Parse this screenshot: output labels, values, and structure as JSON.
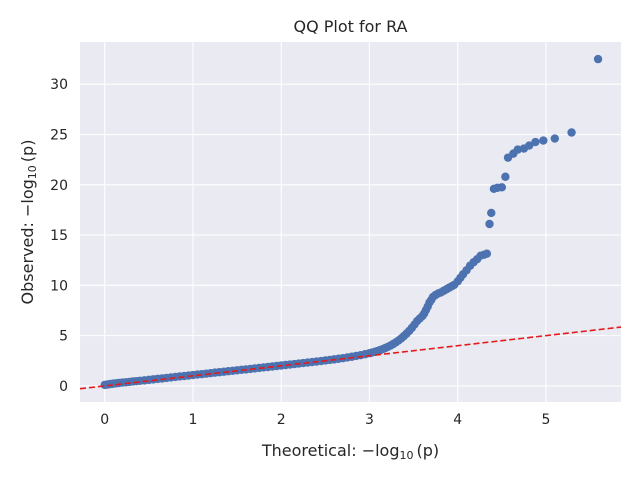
{
  "chart_data": {
    "type": "scatter",
    "title": "QQ Plot for RA",
    "xlabel_prefix": "Theoretical: ",
    "ylabel_prefix": "Observed: ",
    "axis_math": {
      "minus": "−",
      "log": "log",
      "base": "10",
      "arg": "(p)"
    },
    "xlim": [
      -0.28,
      5.85
    ],
    "ylim": [
      -1.6,
      34.2
    ],
    "xticks": [
      0,
      1,
      2,
      3,
      4,
      5
    ],
    "yticks": [
      0,
      5,
      10,
      15,
      20,
      25,
      30
    ],
    "grid": true,
    "background_color": "#eaeaf2",
    "point_color": "#4c72b0",
    "reference_line": {
      "style": "dashed",
      "color": "#e41a1c",
      "slope": 1.0,
      "intercept": 0.0
    },
    "points": [
      [
        0.0,
        0.1
      ],
      [
        0.02,
        0.12
      ],
      [
        0.04,
        0.15
      ],
      [
        0.06,
        0.18
      ],
      [
        0.08,
        0.2
      ],
      [
        0.1,
        0.23
      ],
      [
        0.13,
        0.26
      ],
      [
        0.16,
        0.29
      ],
      [
        0.2,
        0.33
      ],
      [
        0.24,
        0.36
      ],
      [
        0.28,
        0.4
      ],
      [
        0.32,
        0.44
      ],
      [
        0.36,
        0.47
      ],
      [
        0.4,
        0.51
      ],
      [
        0.45,
        0.55
      ],
      [
        0.5,
        0.6
      ],
      [
        0.55,
        0.65
      ],
      [
        0.6,
        0.7
      ],
      [
        0.65,
        0.74
      ],
      [
        0.7,
        0.79
      ],
      [
        0.75,
        0.84
      ],
      [
        0.8,
        0.89
      ],
      [
        0.85,
        0.94
      ],
      [
        0.9,
        0.98
      ],
      [
        0.95,
        1.03
      ],
      [
        1.0,
        1.08
      ],
      [
        1.05,
        1.13
      ],
      [
        1.1,
        1.17
      ],
      [
        1.15,
        1.22
      ],
      [
        1.2,
        1.27
      ],
      [
        1.25,
        1.32
      ],
      [
        1.3,
        1.36
      ],
      [
        1.35,
        1.41
      ],
      [
        1.4,
        1.46
      ],
      [
        1.45,
        1.5
      ],
      [
        1.5,
        1.55
      ],
      [
        1.55,
        1.6
      ],
      [
        1.6,
        1.64
      ],
      [
        1.65,
        1.69
      ],
      [
        1.7,
        1.74
      ],
      [
        1.75,
        1.79
      ],
      [
        1.8,
        1.84
      ],
      [
        1.85,
        1.88
      ],
      [
        1.9,
        1.93
      ],
      [
        1.95,
        1.98
      ],
      [
        2.0,
        2.03
      ],
      [
        2.05,
        2.08
      ],
      [
        2.1,
        2.12
      ],
      [
        2.15,
        2.17
      ],
      [
        2.2,
        2.22
      ],
      [
        2.25,
        2.27
      ],
      [
        2.3,
        2.32
      ],
      [
        2.35,
        2.37
      ],
      [
        2.4,
        2.42
      ],
      [
        2.45,
        2.47
      ],
      [
        2.5,
        2.53
      ],
      [
        2.55,
        2.58
      ],
      [
        2.6,
        2.64
      ],
      [
        2.65,
        2.7
      ],
      [
        2.7,
        2.76
      ],
      [
        2.75,
        2.83
      ],
      [
        2.8,
        2.9
      ],
      [
        2.85,
        2.98
      ],
      [
        2.9,
        3.06
      ],
      [
        2.95,
        3.15
      ],
      [
        3.0,
        3.25
      ],
      [
        3.03,
        3.32
      ],
      [
        3.06,
        3.39
      ],
      [
        3.09,
        3.47
      ],
      [
        3.12,
        3.56
      ],
      [
        3.15,
        3.66
      ],
      [
        3.18,
        3.77
      ],
      [
        3.21,
        3.89
      ],
      [
        3.24,
        4.02
      ],
      [
        3.27,
        4.17
      ],
      [
        3.3,
        4.34
      ],
      [
        3.33,
        4.52
      ],
      [
        3.36,
        4.72
      ],
      [
        3.39,
        4.95
      ],
      [
        3.42,
        5.2
      ],
      [
        3.45,
        5.47
      ],
      [
        3.48,
        5.77
      ],
      [
        3.51,
        6.1
      ],
      [
        3.54,
        6.45
      ],
      [
        3.57,
        6.7
      ],
      [
        3.6,
        6.95
      ],
      [
        3.62,
        7.2
      ],
      [
        3.64,
        7.55
      ],
      [
        3.66,
        7.9
      ],
      [
        3.68,
        8.3
      ],
      [
        3.7,
        8.55
      ],
      [
        3.72,
        8.85
      ],
      [
        3.75,
        9.05
      ],
      [
        3.78,
        9.2
      ],
      [
        3.81,
        9.3
      ],
      [
        3.84,
        9.45
      ],
      [
        3.87,
        9.6
      ],
      [
        3.9,
        9.75
      ],
      [
        3.93,
        9.9
      ],
      [
        3.96,
        10.05
      ],
      [
        4.0,
        10.4
      ],
      [
        4.03,
        10.75
      ],
      [
        4.06,
        11.1
      ],
      [
        4.1,
        11.5
      ],
      [
        4.14,
        11.95
      ],
      [
        4.18,
        12.3
      ],
      [
        4.22,
        12.6
      ],
      [
        4.26,
        12.95
      ],
      [
        4.3,
        13.05
      ],
      [
        4.33,
        13.15
      ],
      [
        4.36,
        16.1
      ],
      [
        4.38,
        17.2
      ],
      [
        4.41,
        19.6
      ],
      [
        4.45,
        19.7
      ],
      [
        4.5,
        19.75
      ],
      [
        4.54,
        20.8
      ],
      [
        4.57,
        22.7
      ],
      [
        4.63,
        23.1
      ],
      [
        4.68,
        23.5
      ],
      [
        4.75,
        23.6
      ],
      [
        4.81,
        23.9
      ],
      [
        4.88,
        24.25
      ],
      [
        4.97,
        24.4
      ],
      [
        5.1,
        24.6
      ],
      [
        5.29,
        25.2
      ],
      [
        5.59,
        32.5
      ]
    ]
  }
}
